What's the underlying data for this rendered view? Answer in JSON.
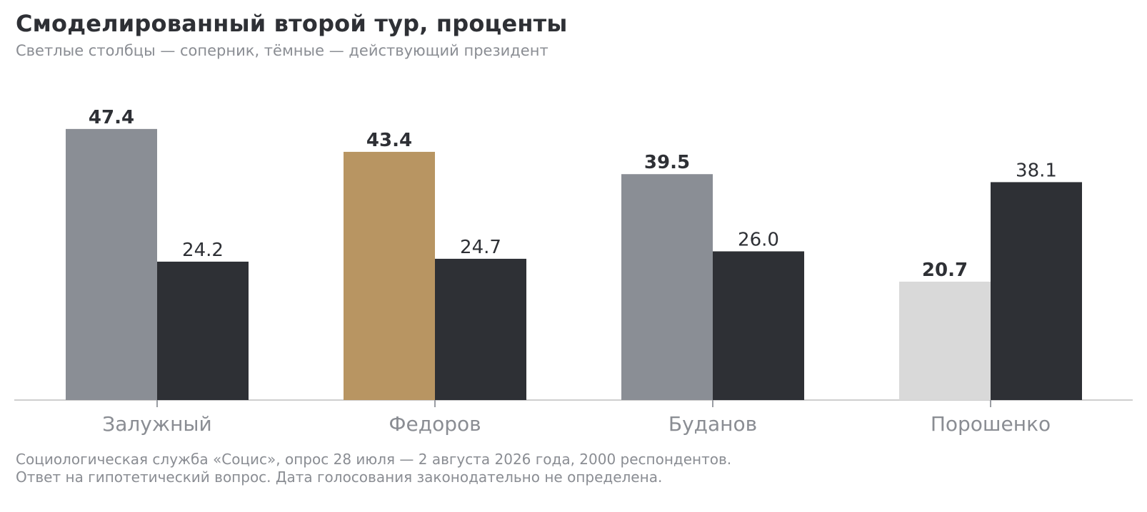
{
  "header": {
    "title": "Смоделированный второй тур, проценты",
    "subtitle": "Светлые столбцы — соперник, тёмные — действующий президент"
  },
  "footer": {
    "line1": "Социологическая служба «Социс», опрос 28 июля — 2 августа 2026 года, 2000 респондентов.",
    "line2": "Ответ на гипотетический вопрос. Дата голосования законодательно не определена."
  },
  "chart_data": {
    "type": "bar",
    "categories": [
      "Залужный",
      "Федоров",
      "Буданов",
      "Порошенко"
    ],
    "series": [
      {
        "values": [
          47.4,
          43.4,
          39.5,
          20.7
        ],
        "colors": [
          "#8a8e95",
          "#b89562",
          "#8a8e95",
          "#d9d9d9"
        ],
        "label_weight": "bold"
      },
      {
        "values": [
          24.2,
          24.7,
          26.0,
          38.1
        ],
        "colors": [
          "#2e3035",
          "#2e3035",
          "#2e3035",
          "#2e3035"
        ],
        "label_weight": "normal"
      }
    ],
    "ylim": [
      0,
      50
    ],
    "grid": false,
    "legend": "none",
    "baseline_color": "#cfcfcf",
    "label_color": "#2e3035",
    "category_color": "#8a8d93"
  }
}
